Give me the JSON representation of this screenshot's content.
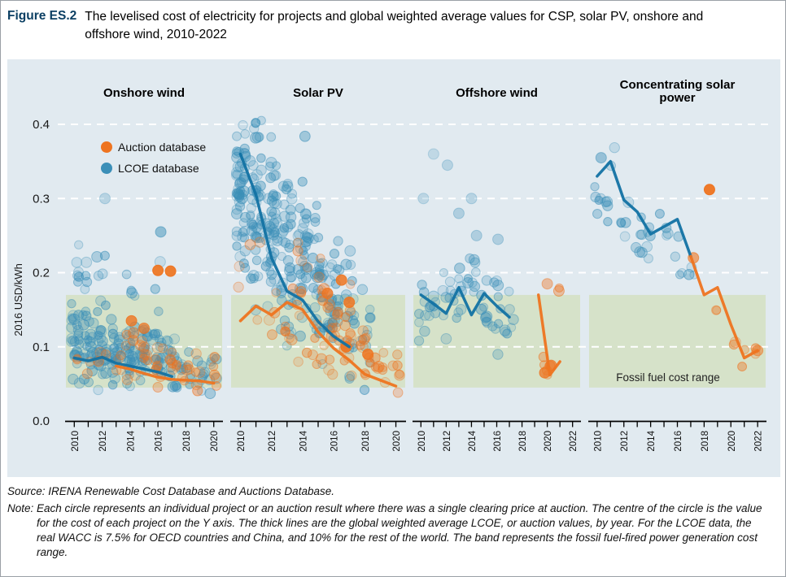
{
  "header": {
    "figure_label": "Figure ES.2",
    "title": "The levelised cost of electricity for projects and global weighted average values for CSP, solar PV, onshore and offshore wind, 2010-2022"
  },
  "footer": {
    "source": "Source: IRENA Renewable Cost Database and Auctions Database.",
    "note_label": "Note:",
    "note": "Each circle represents an individual project or an auction result where there was a single clearing price at auction. The centre of the circle is the value for the cost of each project on the Y axis. The thick lines are the global weighted average LCOE, or auction values, by year. For the LCOE data, the real WACC is 7.5% for OECD countries and China, and 10% for the rest of the world. The band represents the fossil fuel-fired power generation cost range."
  },
  "chart_data": {
    "type": "scatter",
    "ylabel": "2016 USD/kWh",
    "ylim": [
      0,
      0.4
    ],
    "yticks": [
      "0.0",
      "0.1",
      "0.2",
      "0.3",
      "0.4"
    ],
    "grid_values": [
      0.1,
      0.2,
      0.3,
      0.4
    ],
    "legend": [
      {
        "label": "Auction database",
        "series": "auction"
      },
      {
        "label": "LCOE database",
        "series": "lcoe"
      }
    ],
    "colors": {
      "chart_bg": "#e1eaf0",
      "band": "#d6e2c9",
      "auction": "#ee7420",
      "lcoe": "#3b8fb8",
      "auction_line": "#ee7420",
      "lcoe_line": "#1272a3"
    },
    "band": {
      "label": "Fossil fuel cost range",
      "low": 0.045,
      "high": 0.17
    },
    "scatter_format": "[year, count, min_value, max_value] approximate project clouds",
    "panels": [
      {
        "title_lines": [
          "Onshore wind"
        ],
        "xlim": [
          2009.4,
          2020.6
        ],
        "xticks": [
          2010,
          2011,
          2012,
          2013,
          2014,
          2015,
          2016,
          2017,
          2018,
          2019,
          2020
        ],
        "xtick_labels": [
          2010,
          2012,
          2014,
          2016,
          2018,
          2020
        ],
        "lines": {
          "lcoe": [
            [
              2010,
              0.085
            ],
            [
              2011,
              0.081
            ],
            [
              2012,
              0.086
            ],
            [
              2013,
              0.078
            ],
            [
              2014,
              0.074
            ],
            [
              2015,
              0.07
            ],
            [
              2016,
              0.066
            ],
            [
              2017,
              0.06
            ]
          ],
          "auction": [
            [
              2013,
              0.074
            ],
            [
              2014,
              0.07
            ],
            [
              2015,
              0.064
            ],
            [
              2016,
              0.059
            ],
            [
              2017,
              0.056
            ],
            [
              2018,
              0.055
            ],
            [
              2019,
              0.054
            ],
            [
              2020,
              0.051
            ]
          ]
        },
        "scatter": {
          "lcoe": [
            [
              2010,
              26,
              0.04,
              0.17
            ],
            [
              2010,
              6,
              0.17,
              0.24
            ],
            [
              2011,
              24,
              0.04,
              0.16
            ],
            [
              2011,
              4,
              0.16,
              0.22
            ],
            [
              2012,
              26,
              0.04,
              0.16
            ],
            [
              2012,
              5,
              0.16,
              0.24
            ],
            [
              2013,
              24,
              0.04,
              0.15
            ],
            [
              2014,
              26,
              0.04,
              0.15
            ],
            [
              2014,
              4,
              0.15,
              0.21
            ],
            [
              2015,
              22,
              0.04,
              0.14
            ],
            [
              2016,
              20,
              0.04,
              0.14
            ],
            [
              2016,
              3,
              0.14,
              0.22
            ],
            [
              2017,
              16,
              0.035,
              0.12
            ],
            [
              2018,
              10,
              0.03,
              0.1
            ],
            [
              2019,
              8,
              0.03,
              0.1
            ],
            [
              2020,
              7,
              0.03,
              0.1
            ]
          ],
          "auction": [
            [
              2010,
              2,
              0.05,
              0.09
            ],
            [
              2011,
              2,
              0.05,
              0.09
            ],
            [
              2012,
              3,
              0.05,
              0.1
            ],
            [
              2013,
              4,
              0.05,
              0.11
            ],
            [
              2014,
              6,
              0.04,
              0.13
            ],
            [
              2015,
              7,
              0.04,
              0.12
            ],
            [
              2016,
              8,
              0.04,
              0.12
            ],
            [
              2017,
              7,
              0.04,
              0.11
            ],
            [
              2018,
              5,
              0.035,
              0.09
            ],
            [
              2019,
              5,
              0.03,
              0.1
            ],
            [
              2020,
              5,
              0.03,
              0.1
            ]
          ]
        },
        "highlights": [
          [
            "auction",
            2016.0,
            0.203,
            0.92
          ],
          [
            "auction",
            2016.9,
            0.202,
            0.92
          ],
          [
            "auction",
            2014.1,
            0.135,
            0.8
          ],
          [
            "auction",
            2015.0,
            0.125,
            0.7
          ],
          [
            "lcoe",
            2012.2,
            0.3,
            0.25
          ],
          [
            "lcoe",
            2016.2,
            0.255,
            0.5
          ]
        ]
      },
      {
        "title_lines": [
          "Solar PV"
        ],
        "xlim": [
          2009.4,
          2020.6
        ],
        "xticks": [
          2010,
          2011,
          2012,
          2013,
          2014,
          2015,
          2016,
          2017,
          2018,
          2019,
          2020
        ],
        "xtick_labels": [
          2010,
          2012,
          2014,
          2016,
          2018,
          2020
        ],
        "lines": {
          "lcoe": [
            [
              2010,
              0.36
            ],
            [
              2011,
              0.305
            ],
            [
              2012,
              0.22
            ],
            [
              2013,
              0.175
            ],
            [
              2014,
              0.163
            ],
            [
              2015,
              0.134
            ],
            [
              2016,
              0.114
            ],
            [
              2017,
              0.1
            ]
          ],
          "auction": [
            [
              2010,
              0.135
            ],
            [
              2011,
              0.155
            ],
            [
              2012,
              0.143
            ],
            [
              2013,
              0.16
            ],
            [
              2014,
              0.15
            ],
            [
              2015,
              0.12
            ],
            [
              2016,
              0.098
            ],
            [
              2017,
              0.082
            ],
            [
              2018,
              0.063
            ],
            [
              2019,
              0.055
            ],
            [
              2020,
              0.047
            ]
          ]
        },
        "scatter": {
          "lcoe": [
            [
              2010,
              30,
              0.15,
              0.42
            ],
            [
              2010,
              22,
              0.25,
              0.41
            ],
            [
              2011,
              30,
              0.12,
              0.42
            ],
            [
              2011,
              20,
              0.22,
              0.4
            ],
            [
              2012,
              28,
              0.1,
              0.4
            ],
            [
              2012,
              18,
              0.18,
              0.38
            ],
            [
              2013,
              26,
              0.08,
              0.38
            ],
            [
              2013,
              14,
              0.15,
              0.33
            ],
            [
              2014,
              24,
              0.07,
              0.4
            ],
            [
              2014,
              12,
              0.12,
              0.3
            ],
            [
              2015,
              22,
              0.06,
              0.34
            ],
            [
              2015,
              10,
              0.1,
              0.26
            ],
            [
              2016,
              20,
              0.05,
              0.3
            ],
            [
              2016,
              10,
              0.08,
              0.22
            ],
            [
              2017,
              18,
              0.05,
              0.25
            ],
            [
              2018,
              10,
              0.04,
              0.2
            ]
          ],
          "auction": [
            [
              2010,
              2,
              0.12,
              0.25
            ],
            [
              2011,
              3,
              0.1,
              0.26
            ],
            [
              2012,
              4,
              0.08,
              0.24
            ],
            [
              2013,
              6,
              0.08,
              0.22
            ],
            [
              2014,
              10,
              0.06,
              0.28
            ],
            [
              2015,
              12,
              0.05,
              0.24
            ],
            [
              2016,
              14,
              0.05,
              0.2
            ],
            [
              2017,
              12,
              0.04,
              0.19
            ],
            [
              2018,
              10,
              0.035,
              0.15
            ],
            [
              2019,
              8,
              0.03,
              0.12
            ],
            [
              2020,
              6,
              0.028,
              0.1
            ]
          ]
        },
        "highlights": [
          [
            "auction",
            2016.5,
            0.19,
            0.85
          ],
          [
            "auction",
            2017.0,
            0.16,
            0.85
          ],
          [
            "auction",
            2016.8,
            0.1,
            0.9
          ],
          [
            "auction",
            2018.2,
            0.09,
            0.85
          ],
          [
            "auction",
            2015.6,
            0.172,
            0.8
          ]
        ]
      },
      {
        "title_lines": [
          "Offshore wind"
        ],
        "xlim": [
          2009.4,
          2022.6
        ],
        "xticks": [
          2010,
          2011,
          2012,
          2013,
          2014,
          2015,
          2016,
          2017,
          2018,
          2019,
          2020,
          2021,
          2022
        ],
        "xtick_labels": [
          2010,
          2012,
          2014,
          2016,
          2018,
          2020,
          2022
        ],
        "lines": {
          "lcoe": [
            [
              2010,
              0.17
            ],
            [
              2011,
              0.158
            ],
            [
              2012,
              0.145
            ],
            [
              2013,
              0.18
            ],
            [
              2014,
              0.143
            ],
            [
              2015,
              0.172
            ],
            [
              2016,
              0.155
            ],
            [
              2017,
              0.14
            ]
          ],
          "auction": [
            [
              2019.3,
              0.17
            ],
            [
              2020.2,
              0.062
            ],
            [
              2021.0,
              0.08
            ]
          ]
        },
        "scatter": {
          "lcoe": [
            [
              2010,
              8,
              0.1,
              0.2
            ],
            [
              2011,
              7,
              0.1,
              0.19
            ],
            [
              2012,
              8,
              0.1,
              0.21
            ],
            [
              2013,
              9,
              0.11,
              0.24
            ],
            [
              2014,
              9,
              0.1,
              0.26
            ],
            [
              2015,
              8,
              0.1,
              0.21
            ],
            [
              2016,
              9,
              0.08,
              0.22
            ],
            [
              2017,
              7,
              0.08,
              0.18
            ]
          ],
          "auction": [
            [
              2019.6,
              2,
              0.05,
              0.08
            ],
            [
              2020,
              3,
              0.05,
              0.1
            ],
            [
              2020.6,
              2,
              0.15,
              0.19
            ]
          ]
        },
        "highlights": [
          [
            "lcoe",
            2010.2,
            0.3,
            0.22
          ],
          [
            "lcoe",
            2011.0,
            0.36,
            0.2
          ],
          [
            "lcoe",
            2012.1,
            0.345,
            0.25
          ],
          [
            "lcoe",
            2013.0,
            0.28,
            0.3
          ],
          [
            "lcoe",
            2014.0,
            0.3,
            0.25
          ],
          [
            "lcoe",
            2014.4,
            0.25,
            0.3
          ],
          [
            "lcoe",
            2016.1,
            0.245,
            0.3
          ],
          [
            "auction",
            2020.0,
            0.185,
            0.4
          ],
          [
            "auction",
            2019.8,
            0.065,
            0.75
          ],
          [
            "auction",
            2020.3,
            0.075,
            0.7
          ]
        ]
      },
      {
        "title_lines": [
          "Concentrating solar",
          "power"
        ],
        "xlim": [
          2009.4,
          2022.6
        ],
        "xticks": [
          2010,
          2011,
          2012,
          2013,
          2014,
          2015,
          2016,
          2017,
          2018,
          2019,
          2020,
          2021,
          2022
        ],
        "xtick_labels": [
          2010,
          2012,
          2014,
          2016,
          2018,
          2020,
          2022
        ],
        "lines": {
          "lcoe": [
            [
              2010,
              0.33
            ],
            [
              2011,
              0.35
            ],
            [
              2012,
              0.298
            ],
            [
              2013,
              0.282
            ],
            [
              2014,
              0.252
            ],
            [
              2015,
              0.262
            ],
            [
              2016,
              0.272
            ],
            [
              2017,
              0.222
            ]
          ],
          "auction": [
            [
              2017,
              0.222
            ],
            [
              2018,
              0.17
            ],
            [
              2019,
              0.18
            ],
            [
              2020,
              0.13
            ],
            [
              2021,
              0.085
            ],
            [
              2022,
              0.095
            ]
          ]
        },
        "scatter": {
          "lcoe": [
            [
              2010,
              5,
              0.26,
              0.37
            ],
            [
              2011,
              6,
              0.23,
              0.38
            ],
            [
              2012,
              5,
              0.21,
              0.34
            ],
            [
              2013,
              6,
              0.19,
              0.31
            ],
            [
              2014,
              5,
              0.18,
              0.29
            ],
            [
              2015,
              4,
              0.19,
              0.3
            ],
            [
              2016,
              4,
              0.17,
              0.27
            ],
            [
              2017,
              3,
              0.17,
              0.24
            ]
          ],
          "auction": [
            [
              2019,
              2,
              0.12,
              0.17
            ],
            [
              2020,
              2,
              0.08,
              0.13
            ],
            [
              2021,
              2,
              0.07,
              0.1
            ],
            [
              2022,
              2,
              0.07,
              0.1
            ]
          ]
        },
        "highlights": [
          [
            "auction",
            2018.4,
            0.312,
            0.95
          ],
          [
            "auction",
            2017.2,
            0.22,
            0.6
          ],
          [
            "lcoe",
            2010.3,
            0.355,
            0.45
          ],
          [
            "auction",
            2022.0,
            0.095,
            0.5
          ]
        ]
      }
    ]
  }
}
